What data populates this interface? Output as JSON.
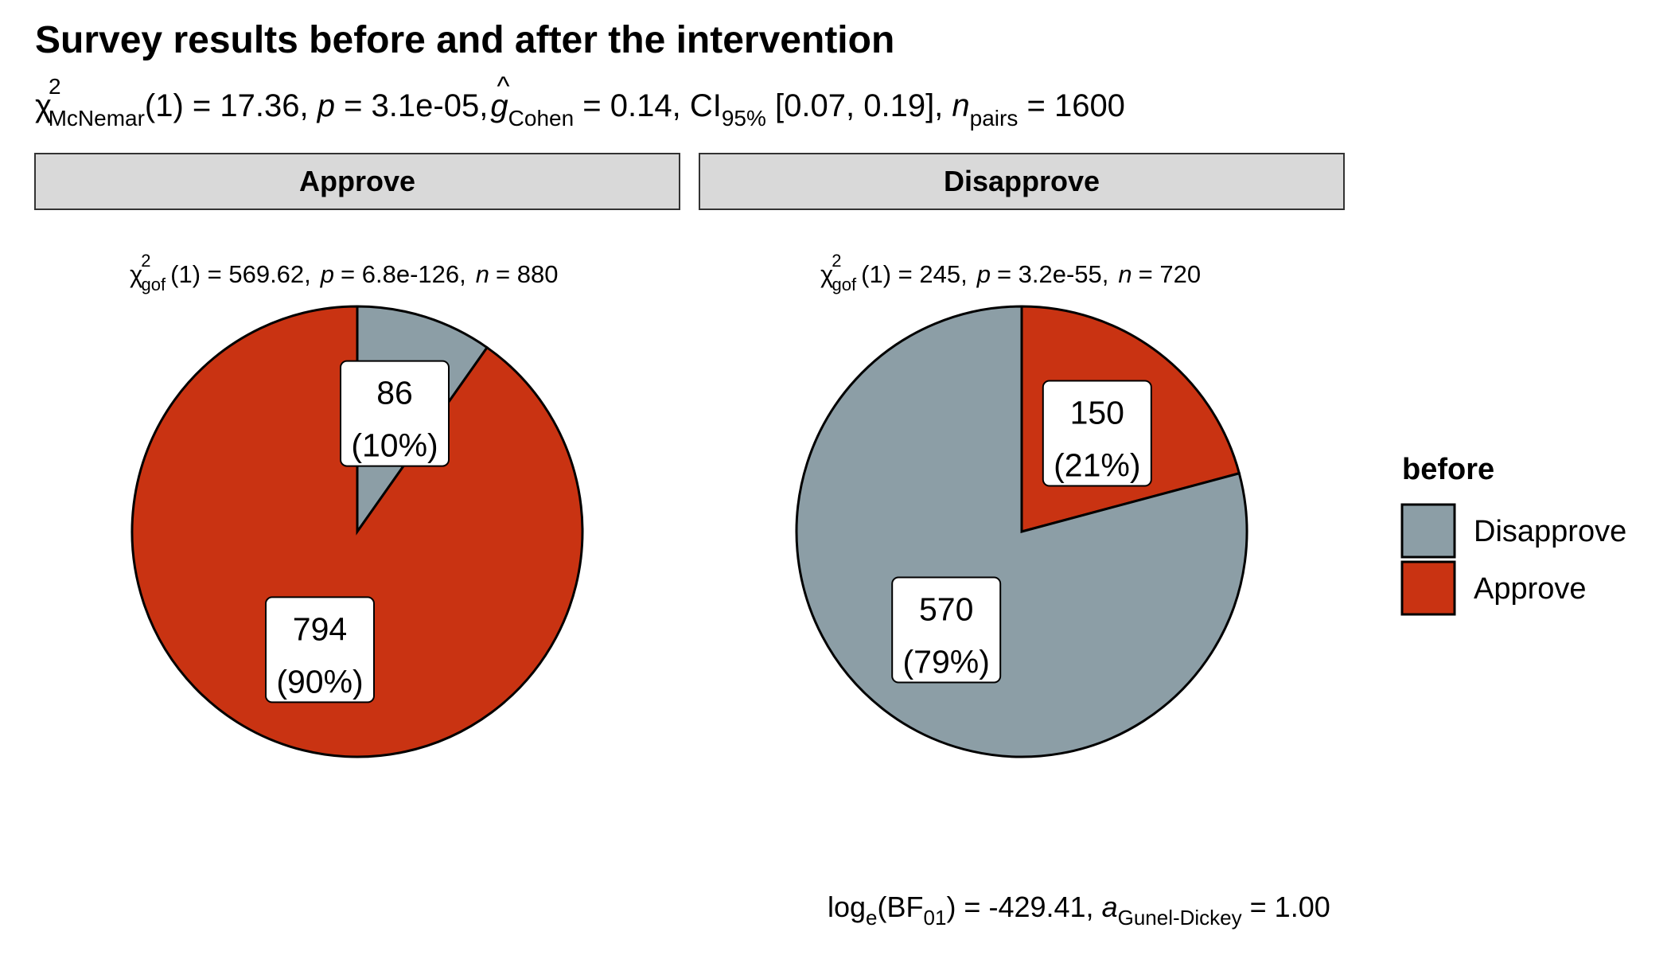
{
  "chart_data": {
    "type": "pie",
    "title": "Survey results before and after the intervention",
    "subtitle": {
      "stat_chi": "χ",
      "stat_sup": "2",
      "stat_sub": "McNemar",
      "stat_rest": "(1) = 17.36, ",
      "p_symbol": "p",
      "p_value": " = 3.1e-05, ",
      "effect_symbol": "g",
      "effect_hat": "^",
      "effect_sub": "Cohen",
      "effect_value": " = 0.14, CI",
      "ci_sub": "95%",
      "ci_value": " [0.07, 0.19], ",
      "n_symbol": "n",
      "n_sub": "pairs",
      "n_value": " = 1600"
    },
    "caption": {
      "log": "log",
      "log_sub": "e",
      "bf": "(BF",
      "bf_sub": "01",
      "bf_value": ") = -429.41, ",
      "a_symbol": "a",
      "a_sub": "Gunel-Dickey",
      "a_value": " = 1.00"
    },
    "legend": {
      "title": "before",
      "position": "right",
      "items": [
        {
          "label": "Disapprove",
          "color": "#8C9EA6"
        },
        {
          "label": "Approve",
          "color": "#C93312"
        }
      ]
    },
    "colors": {
      "Disapprove": "#8C9EA6",
      "Approve": "#C93312",
      "strip_fill": "#D9D9D9"
    },
    "panels": [
      {
        "strip": "Approve",
        "stat_chi": "χ",
        "stat_sup": "2",
        "stat_sub": "gof",
        "stat_value": "(1) = 569.62,",
        "p_symbol": "p",
        "p_value": "= 6.8e-126,",
        "n_symbol": "n",
        "n_value": "= 880",
        "slices": [
          {
            "category": "Disapprove",
            "value": 86,
            "count_label": "86",
            "pct_label": "(10%)"
          },
          {
            "category": "Approve",
            "value": 794,
            "count_label": "794",
            "pct_label": "(90%)"
          }
        ]
      },
      {
        "strip": "Disapprove",
        "stat_chi": "χ",
        "stat_sup": "2",
        "stat_sub": "gof",
        "stat_value": "(1) = 245,",
        "p_symbol": "p",
        "p_value": "= 3.2e-55,",
        "n_symbol": "n",
        "n_value": "= 720",
        "slices": [
          {
            "category": "Approve",
            "value": 150,
            "count_label": "150",
            "pct_label": "(21%)"
          },
          {
            "category": "Disapprove",
            "value": 570,
            "count_label": "570",
            "pct_label": "(79%)"
          }
        ]
      }
    ]
  }
}
